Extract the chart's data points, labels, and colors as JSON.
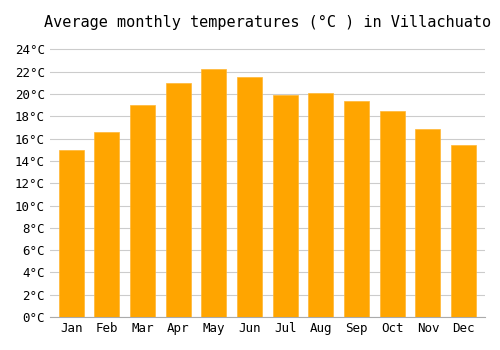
{
  "title": "Average monthly temperatures (°C ) in Villachuato",
  "months": [
    "Jan",
    "Feb",
    "Mar",
    "Apr",
    "May",
    "Jun",
    "Jul",
    "Aug",
    "Sep",
    "Oct",
    "Nov",
    "Dec"
  ],
  "values": [
    15.0,
    16.6,
    19.0,
    21.0,
    22.2,
    21.5,
    19.9,
    20.1,
    19.4,
    18.5,
    16.9,
    15.4
  ],
  "bar_color_face": "#FFA500",
  "bar_color_edge": "#FFB733",
  "ylim": [
    0,
    25
  ],
  "ytick_step": 2,
  "background_color": "#ffffff",
  "grid_color": "#cccccc",
  "title_fontsize": 11,
  "tick_fontsize": 9,
  "font_family": "monospace"
}
